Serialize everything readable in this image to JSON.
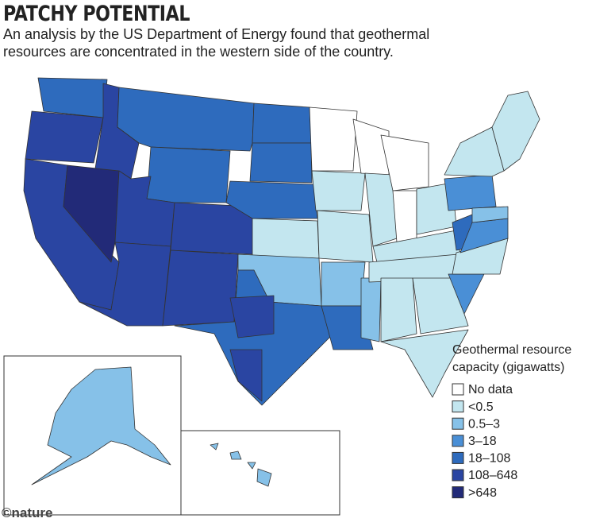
{
  "header": {
    "title": "PATCHY POTENTIAL",
    "subtitle": "An analysis by the US Department of Energy found that geothermal resources are concentrated in the western side of the country."
  },
  "legend": {
    "title": "Geothermal resource capacity (gigawatts)",
    "items": [
      {
        "label": "No data",
        "color": "#ffffff"
      },
      {
        "label": "<0.5",
        "color": "#c3e6ef"
      },
      {
        "label": "0.5–3",
        "color": "#86c1e8"
      },
      {
        "label": "3–18",
        "color": "#4a8fd6"
      },
      {
        "label": "18–108",
        "color": "#2e6bbd"
      },
      {
        "label": "108–648",
        "color": "#2a45a2"
      },
      {
        "label": ">648",
        "color": "#222a78"
      }
    ]
  },
  "credit": "©nature"
}
